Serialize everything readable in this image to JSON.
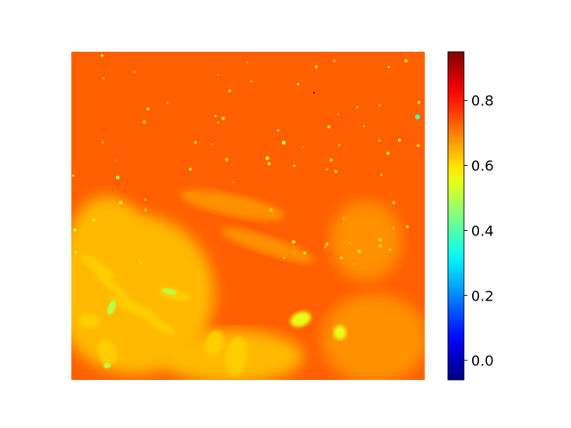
{
  "chart_data": {
    "type": "heatmap",
    "title": "",
    "xlabel": "",
    "ylabel": "",
    "axes_visible": false,
    "colormap": "jet",
    "colorbar": {
      "position": "right",
      "vmin": -0.06,
      "vmax": 0.95,
      "ticks": [
        0.0,
        0.2,
        0.4,
        0.6,
        0.8
      ],
      "tick_labels": [
        "0.0",
        "0.2",
        "0.4",
        "0.6",
        "0.8"
      ]
    },
    "field_description": {
      "background_value": 0.73,
      "upper_region_value": 0.74,
      "lower_left_region_value": 0.64,
      "lower_right_region_value": 0.68,
      "speck_value_range": [
        0.55,
        0.62
      ],
      "bright_spot_values": [
        0.45,
        0.5,
        0.38
      ],
      "dark_speck_value": 0.95
    }
  }
}
